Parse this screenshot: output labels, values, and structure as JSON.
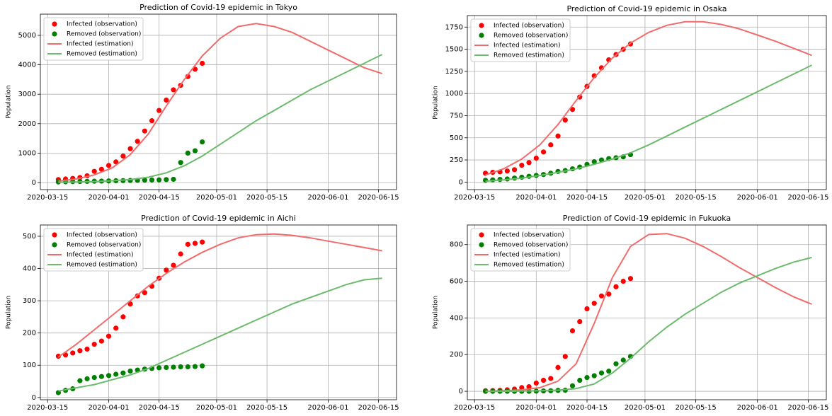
{
  "chart_data": [
    {
      "type": "line",
      "title": "Prediction of Covid-19 epidemic in Tokyo",
      "ylabel": "Population",
      "legend": "upper left",
      "grid": true,
      "xlim": [
        "2020-03-13",
        "2020-06-20"
      ],
      "xticks": [
        "2020-03-15",
        "2020-04-01",
        "2020-04-15",
        "2020-05-01",
        "2020-05-15",
        "2020-06-01",
        "2020-06-15"
      ],
      "ylim": [
        -240,
        5720
      ],
      "yticks": [
        0,
        1000,
        2000,
        3000,
        4000,
        5000
      ],
      "series": [
        {
          "name": "Infected (observation)",
          "type": "scatter",
          "color": "#ff0000",
          "x": [
            "2020-03-18",
            "2020-03-20",
            "2020-03-22",
            "2020-03-24",
            "2020-03-26",
            "2020-03-28",
            "2020-03-30",
            "2020-04-01",
            "2020-04-03",
            "2020-04-05",
            "2020-04-07",
            "2020-04-09",
            "2020-04-11",
            "2020-04-13",
            "2020-04-15",
            "2020-04-17",
            "2020-04-19",
            "2020-04-21",
            "2020-04-23",
            "2020-04-25",
            "2020-04-27"
          ],
          "values": [
            100,
            120,
            140,
            170,
            230,
            380,
            450,
            580,
            700,
            900,
            1150,
            1400,
            1750,
            2100,
            2450,
            2800,
            3150,
            3300,
            3600,
            3850,
            4050
          ]
        },
        {
          "name": "Removed (observation)",
          "type": "scatter",
          "color": "#008000",
          "x": [
            "2020-03-18",
            "2020-03-20",
            "2020-03-22",
            "2020-03-24",
            "2020-03-26",
            "2020-03-28",
            "2020-03-30",
            "2020-04-01",
            "2020-04-03",
            "2020-04-05",
            "2020-04-07",
            "2020-04-09",
            "2020-04-11",
            "2020-04-13",
            "2020-04-15",
            "2020-04-17",
            "2020-04-19",
            "2020-04-21",
            "2020-04-23",
            "2020-04-25",
            "2020-04-27"
          ],
          "values": [
            20,
            25,
            30,
            35,
            40,
            45,
            50,
            55,
            60,
            65,
            70,
            75,
            80,
            85,
            90,
            100,
            110,
            680,
            1000,
            1080,
            1380
          ]
        },
        {
          "name": "Infected (estimation)",
          "type": "line",
          "color": "#f26b6b",
          "x": [
            "2020-03-18",
            "2020-03-23",
            "2020-03-28",
            "2020-04-02",
            "2020-04-07",
            "2020-04-12",
            "2020-04-17",
            "2020-04-22",
            "2020-04-27",
            "2020-05-02",
            "2020-05-07",
            "2020-05-12",
            "2020-05-17",
            "2020-05-22",
            "2020-05-27",
            "2020-06-01",
            "2020-06-06",
            "2020-06-11",
            "2020-06-16"
          ],
          "values": [
            50,
            120,
            260,
            500,
            950,
            1650,
            2600,
            3500,
            4300,
            4900,
            5300,
            5400,
            5300,
            5100,
            4800,
            4500,
            4200,
            3900,
            3700
          ]
        },
        {
          "name": "Removed (estimation)",
          "type": "line",
          "color": "#6cbb6c",
          "x": [
            "2020-03-18",
            "2020-03-23",
            "2020-03-28",
            "2020-04-02",
            "2020-04-07",
            "2020-04-12",
            "2020-04-17",
            "2020-04-22",
            "2020-04-27",
            "2020-05-02",
            "2020-05-07",
            "2020-05-12",
            "2020-05-17",
            "2020-05-22",
            "2020-05-27",
            "2020-06-01",
            "2020-06-06",
            "2020-06-11",
            "2020-06-16"
          ],
          "values": [
            10,
            20,
            35,
            60,
            100,
            180,
            330,
            570,
            900,
            1300,
            1700,
            2100,
            2450,
            2800,
            3150,
            3450,
            3750,
            4050,
            4350
          ]
        }
      ]
    },
    {
      "type": "line",
      "title": "Prediction of Covid-19 epidemic in Osaka",
      "ylabel": "Population",
      "legend": "upper left",
      "grid": true,
      "xlim": [
        "2020-03-13",
        "2020-06-20"
      ],
      "xticks": [
        "2020-03-15",
        "2020-04-01",
        "2020-04-15",
        "2020-05-01",
        "2020-05-15",
        "2020-06-01",
        "2020-06-15"
      ],
      "ylim": [
        -85,
        1880
      ],
      "yticks": [
        0,
        250,
        500,
        750,
        1000,
        1250,
        1500,
        1750
      ],
      "series": [
        {
          "name": "Infected (observation)",
          "type": "scatter",
          "color": "#ff0000",
          "x": [
            "2020-03-18",
            "2020-03-20",
            "2020-03-22",
            "2020-03-24",
            "2020-03-26",
            "2020-03-28",
            "2020-03-30",
            "2020-04-01",
            "2020-04-03",
            "2020-04-05",
            "2020-04-07",
            "2020-04-09",
            "2020-04-11",
            "2020-04-13",
            "2020-04-15",
            "2020-04-17",
            "2020-04-19",
            "2020-04-21",
            "2020-04-23",
            "2020-04-25",
            "2020-04-27"
          ],
          "values": [
            100,
            110,
            115,
            125,
            140,
            190,
            220,
            270,
            340,
            420,
            520,
            700,
            820,
            960,
            1080,
            1200,
            1290,
            1380,
            1440,
            1500,
            1560
          ]
        },
        {
          "name": "Removed (observation)",
          "type": "scatter",
          "color": "#008000",
          "x": [
            "2020-03-18",
            "2020-03-20",
            "2020-03-22",
            "2020-03-24",
            "2020-03-26",
            "2020-03-28",
            "2020-03-30",
            "2020-04-01",
            "2020-04-03",
            "2020-04-05",
            "2020-04-07",
            "2020-04-09",
            "2020-04-11",
            "2020-04-13",
            "2020-04-15",
            "2020-04-17",
            "2020-04-19",
            "2020-04-21",
            "2020-04-23",
            "2020-04-25",
            "2020-04-27"
          ],
          "values": [
            20,
            25,
            30,
            35,
            45,
            55,
            65,
            75,
            85,
            100,
            120,
            130,
            150,
            170,
            200,
            230,
            250,
            265,
            275,
            285,
            310
          ]
        },
        {
          "name": "Infected (estimation)",
          "type": "line",
          "color": "#f26b6b",
          "x": [
            "2020-03-18",
            "2020-03-23",
            "2020-03-28",
            "2020-04-02",
            "2020-04-07",
            "2020-04-12",
            "2020-04-17",
            "2020-04-22",
            "2020-04-27",
            "2020-05-02",
            "2020-05-07",
            "2020-05-12",
            "2020-05-17",
            "2020-05-22",
            "2020-05-27",
            "2020-06-01",
            "2020-06-06",
            "2020-06-11",
            "2020-06-16"
          ],
          "values": [
            80,
            150,
            260,
            420,
            650,
            920,
            1180,
            1400,
            1570,
            1690,
            1770,
            1810,
            1810,
            1780,
            1730,
            1660,
            1590,
            1510,
            1430
          ]
        },
        {
          "name": "Removed (estimation)",
          "type": "line",
          "color": "#6cbb6c",
          "x": [
            "2020-03-18",
            "2020-03-23",
            "2020-03-28",
            "2020-04-02",
            "2020-04-07",
            "2020-04-12",
            "2020-04-17",
            "2020-04-22",
            "2020-04-27",
            "2020-05-02",
            "2020-05-07",
            "2020-05-12",
            "2020-05-17",
            "2020-05-22",
            "2020-05-27",
            "2020-06-01",
            "2020-06-06",
            "2020-06-11",
            "2020-06-16"
          ],
          "values": [
            10,
            25,
            45,
            75,
            110,
            150,
            200,
            260,
            330,
            420,
            520,
            620,
            720,
            820,
            920,
            1020,
            1120,
            1220,
            1320
          ]
        }
      ]
    },
    {
      "type": "line",
      "title": "Prediction of Covid-19 epidemic in Aichi",
      "ylabel": "Population",
      "legend": "upper left",
      "grid": true,
      "xlim": [
        "2020-03-13",
        "2020-06-20"
      ],
      "xticks": [
        "2020-03-15",
        "2020-04-01",
        "2020-04-15",
        "2020-05-01",
        "2020-05-15",
        "2020-06-01",
        "2020-06-15"
      ],
      "ylim": [
        -7,
        535
      ],
      "yticks": [
        0,
        100,
        200,
        300,
        400,
        500
      ],
      "series": [
        {
          "name": "Infected (observation)",
          "type": "scatter",
          "color": "#ff0000",
          "x": [
            "2020-03-18",
            "2020-03-20",
            "2020-03-22",
            "2020-03-24",
            "2020-03-26",
            "2020-03-28",
            "2020-03-30",
            "2020-04-01",
            "2020-04-03",
            "2020-04-05",
            "2020-04-07",
            "2020-04-09",
            "2020-04-11",
            "2020-04-13",
            "2020-04-15",
            "2020-04-17",
            "2020-04-19",
            "2020-04-21",
            "2020-04-23",
            "2020-04-25",
            "2020-04-27"
          ],
          "values": [
            128,
            132,
            138,
            145,
            150,
            165,
            175,
            190,
            215,
            250,
            290,
            315,
            325,
            345,
            370,
            395,
            410,
            445,
            475,
            478,
            482
          ]
        },
        {
          "name": "Removed (observation)",
          "type": "scatter",
          "color": "#008000",
          "x": [
            "2020-03-18",
            "2020-03-20",
            "2020-03-22",
            "2020-03-24",
            "2020-03-26",
            "2020-03-28",
            "2020-03-30",
            "2020-04-01",
            "2020-04-03",
            "2020-04-05",
            "2020-04-07",
            "2020-04-09",
            "2020-04-11",
            "2020-04-13",
            "2020-04-15",
            "2020-04-17",
            "2020-04-19",
            "2020-04-21",
            "2020-04-23",
            "2020-04-25",
            "2020-04-27"
          ],
          "values": [
            15,
            22,
            27,
            52,
            58,
            62,
            65,
            68,
            72,
            76,
            82,
            85,
            88,
            90,
            92,
            93,
            94,
            95,
            95,
            96,
            98
          ]
        },
        {
          "name": "Infected (estimation)",
          "type": "line",
          "color": "#f26b6b",
          "x": [
            "2020-03-18",
            "2020-03-23",
            "2020-03-28",
            "2020-04-02",
            "2020-04-07",
            "2020-04-12",
            "2020-04-17",
            "2020-04-22",
            "2020-04-27",
            "2020-05-02",
            "2020-05-07",
            "2020-05-12",
            "2020-05-17",
            "2020-05-22",
            "2020-05-27",
            "2020-06-01",
            "2020-06-06",
            "2020-06-11",
            "2020-06-16"
          ],
          "values": [
            125,
            165,
            210,
            255,
            300,
            345,
            385,
            420,
            450,
            475,
            495,
            505,
            507,
            503,
            495,
            485,
            475,
            465,
            455
          ]
        },
        {
          "name": "Removed (estimation)",
          "type": "line",
          "color": "#6cbb6c",
          "x": [
            "2020-03-18",
            "2020-03-23",
            "2020-03-28",
            "2020-04-02",
            "2020-04-07",
            "2020-04-12",
            "2020-04-17",
            "2020-04-22",
            "2020-04-27",
            "2020-05-02",
            "2020-05-07",
            "2020-05-12",
            "2020-05-17",
            "2020-05-22",
            "2020-05-27",
            "2020-06-01",
            "2020-06-06",
            "2020-06-11",
            "2020-06-16"
          ],
          "values": [
            20,
            30,
            40,
            55,
            70,
            90,
            115,
            140,
            165,
            190,
            215,
            240,
            265,
            290,
            310,
            330,
            350,
            365,
            370
          ]
        }
      ]
    },
    {
      "type": "line",
      "title": "Prediction of Covid-19 epidemic in Fukuoka",
      "ylabel": "Population",
      "legend": "upper left",
      "grid": true,
      "xlim": [
        "2020-03-13",
        "2020-06-20"
      ],
      "xticks": [
        "2020-03-15",
        "2020-04-01",
        "2020-04-15",
        "2020-05-01",
        "2020-05-15",
        "2020-06-01",
        "2020-06-15"
      ],
      "ylim": [
        -46,
        907
      ],
      "yticks": [
        0,
        200,
        400,
        600,
        800
      ],
      "series": [
        {
          "name": "Infected (observation)",
          "type": "scatter",
          "color": "#ff0000",
          "x": [
            "2020-03-18",
            "2020-03-20",
            "2020-03-22",
            "2020-03-24",
            "2020-03-26",
            "2020-03-28",
            "2020-03-30",
            "2020-04-01",
            "2020-04-03",
            "2020-04-05",
            "2020-04-07",
            "2020-04-09",
            "2020-04-11",
            "2020-04-13",
            "2020-04-15",
            "2020-04-17",
            "2020-04-19",
            "2020-04-21",
            "2020-04-23",
            "2020-04-25",
            "2020-04-27"
          ],
          "values": [
            3,
            4,
            5,
            8,
            12,
            20,
            25,
            45,
            60,
            70,
            130,
            190,
            330,
            380,
            450,
            480,
            520,
            530,
            570,
            600,
            615
          ]
        },
        {
          "name": "Removed (observation)",
          "type": "scatter",
          "color": "#008000",
          "x": [
            "2020-03-18",
            "2020-03-20",
            "2020-03-22",
            "2020-03-24",
            "2020-03-26",
            "2020-03-28",
            "2020-03-30",
            "2020-04-01",
            "2020-04-03",
            "2020-04-05",
            "2020-04-07",
            "2020-04-09",
            "2020-04-11",
            "2020-04-13",
            "2020-04-15",
            "2020-04-17",
            "2020-04-19",
            "2020-04-21",
            "2020-04-23",
            "2020-04-25",
            "2020-04-27"
          ],
          "values": [
            0,
            0,
            0,
            0,
            0,
            0,
            0,
            1,
            2,
            3,
            5,
            6,
            30,
            60,
            75,
            85,
            100,
            110,
            150,
            170,
            190
          ]
        },
        {
          "name": "Infected (estimation)",
          "type": "line",
          "color": "#f26b6b",
          "x": [
            "2020-03-18",
            "2020-03-23",
            "2020-03-28",
            "2020-04-02",
            "2020-04-07",
            "2020-04-12",
            "2020-04-17",
            "2020-04-22",
            "2020-04-27",
            "2020-05-02",
            "2020-05-07",
            "2020-05-12",
            "2020-05-17",
            "2020-05-22",
            "2020-05-27",
            "2020-06-01",
            "2020-06-06",
            "2020-06-11",
            "2020-06-16"
          ],
          "values": [
            0,
            3,
            8,
            20,
            55,
            150,
            370,
            620,
            790,
            855,
            860,
            835,
            790,
            735,
            675,
            620,
            565,
            515,
            475
          ]
        },
        {
          "name": "Removed (estimation)",
          "type": "line",
          "color": "#6cbb6c",
          "x": [
            "2020-03-18",
            "2020-03-23",
            "2020-03-28",
            "2020-04-02",
            "2020-04-07",
            "2020-04-12",
            "2020-04-17",
            "2020-04-22",
            "2020-04-27",
            "2020-05-02",
            "2020-05-07",
            "2020-05-12",
            "2020-05-17",
            "2020-05-22",
            "2020-05-27",
            "2020-06-01",
            "2020-06-06",
            "2020-06-11",
            "2020-06-16"
          ],
          "values": [
            0,
            0,
            1,
            3,
            6,
            15,
            40,
            100,
            180,
            270,
            350,
            420,
            480,
            540,
            590,
            630,
            670,
            705,
            730
          ]
        }
      ]
    }
  ]
}
